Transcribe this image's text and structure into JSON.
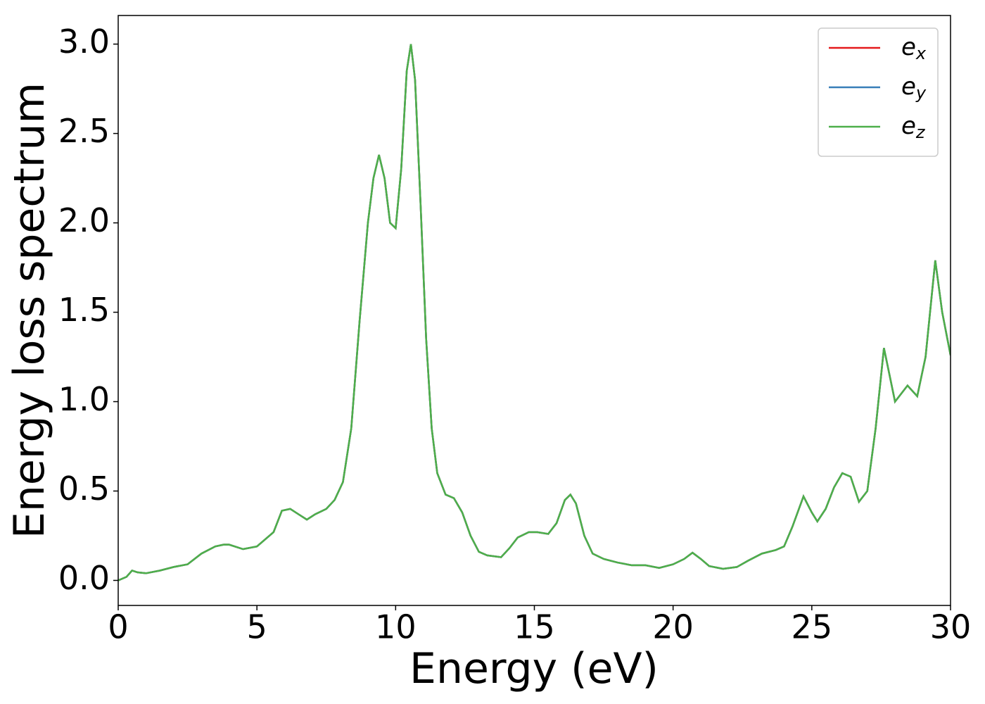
{
  "chart_data": {
    "type": "line",
    "xlabel": "Energy (eV)",
    "ylabel": "Energy loss spectrum",
    "x": [
      0,
      0.3,
      0.5,
      0.7,
      1.0,
      1.5,
      2.0,
      2.5,
      3.0,
      3.5,
      3.8,
      4.0,
      4.5,
      5.0,
      5.3,
      5.6,
      5.9,
      6.2,
      6.5,
      6.8,
      7.1,
      7.5,
      7.8,
      8.1,
      8.4,
      8.7,
      9.0,
      9.2,
      9.4,
      9.6,
      9.8,
      10.0,
      10.2,
      10.4,
      10.55,
      10.7,
      10.9,
      11.1,
      11.3,
      11.5,
      11.8,
      12.1,
      12.4,
      12.7,
      13.0,
      13.3,
      13.8,
      14.1,
      14.4,
      14.8,
      15.1,
      15.5,
      15.8,
      16.1,
      16.3,
      16.5,
      16.8,
      17.1,
      17.5,
      18.0,
      18.5,
      19.0,
      19.5,
      20.0,
      20.4,
      20.7,
      21.0,
      21.3,
      21.8,
      22.3,
      22.7,
      23.2,
      23.7,
      24.0,
      24.3,
      24.7,
      25.0,
      25.2,
      25.5,
      25.8,
      26.1,
      26.4,
      26.7,
      27.0,
      27.3,
      27.6,
      27.8,
      28.0,
      28.2,
      28.45,
      28.8,
      29.1,
      29.45,
      29.7,
      30.0
    ],
    "series": [
      {
        "name": "ex",
        "color": "#e41a1c",
        "values": [
          0,
          0.02,
          0.055,
          0.045,
          0.04,
          0.055,
          0.075,
          0.09,
          0.15,
          0.19,
          0.2,
          0.2,
          0.175,
          0.19,
          0.23,
          0.27,
          0.39,
          0.4,
          0.37,
          0.34,
          0.37,
          0.4,
          0.45,
          0.55,
          0.85,
          1.45,
          2.0,
          2.25,
          2.38,
          2.25,
          2.0,
          1.97,
          2.3,
          2.85,
          3.0,
          2.8,
          2.1,
          1.35,
          0.85,
          0.6,
          0.48,
          0.46,
          0.38,
          0.25,
          0.16,
          0.14,
          0.13,
          0.18,
          0.24,
          0.27,
          0.27,
          0.26,
          0.32,
          0.45,
          0.48,
          0.43,
          0.25,
          0.15,
          0.12,
          0.1,
          0.085,
          0.085,
          0.07,
          0.09,
          0.12,
          0.155,
          0.12,
          0.08,
          0.065,
          0.075,
          0.11,
          0.15,
          0.17,
          0.19,
          0.3,
          0.47,
          0.38,
          0.33,
          0.4,
          0.52,
          0.6,
          0.58,
          0.44,
          0.5,
          0.85,
          1.3,
          1.15,
          1.0,
          1.04,
          1.09,
          1.03,
          1.25,
          1.79,
          1.5,
          1.26
        ]
      },
      {
        "name": "ey",
        "color": "#377eb8",
        "values": [
          0,
          0.02,
          0.055,
          0.045,
          0.04,
          0.055,
          0.075,
          0.09,
          0.15,
          0.19,
          0.2,
          0.2,
          0.175,
          0.19,
          0.23,
          0.27,
          0.39,
          0.4,
          0.37,
          0.34,
          0.37,
          0.4,
          0.45,
          0.55,
          0.85,
          1.45,
          2.0,
          2.25,
          2.38,
          2.25,
          2.0,
          1.97,
          2.3,
          2.85,
          3.0,
          2.8,
          2.1,
          1.35,
          0.85,
          0.6,
          0.48,
          0.46,
          0.38,
          0.25,
          0.16,
          0.14,
          0.13,
          0.18,
          0.24,
          0.27,
          0.27,
          0.26,
          0.32,
          0.45,
          0.48,
          0.43,
          0.25,
          0.15,
          0.12,
          0.1,
          0.085,
          0.085,
          0.07,
          0.09,
          0.12,
          0.155,
          0.12,
          0.08,
          0.065,
          0.075,
          0.11,
          0.15,
          0.17,
          0.19,
          0.3,
          0.47,
          0.38,
          0.33,
          0.4,
          0.52,
          0.6,
          0.58,
          0.44,
          0.5,
          0.85,
          1.3,
          1.15,
          1.0,
          1.04,
          1.09,
          1.03,
          1.25,
          1.79,
          1.5,
          1.26
        ]
      },
      {
        "name": "ez",
        "color": "#4daf4a",
        "values": [
          0,
          0.02,
          0.055,
          0.045,
          0.04,
          0.055,
          0.075,
          0.09,
          0.15,
          0.19,
          0.2,
          0.2,
          0.175,
          0.19,
          0.23,
          0.27,
          0.39,
          0.4,
          0.37,
          0.34,
          0.37,
          0.4,
          0.45,
          0.55,
          0.85,
          1.45,
          2.0,
          2.25,
          2.38,
          2.25,
          2.0,
          1.97,
          2.3,
          2.85,
          3.0,
          2.8,
          2.1,
          1.35,
          0.85,
          0.6,
          0.48,
          0.46,
          0.38,
          0.25,
          0.16,
          0.14,
          0.13,
          0.18,
          0.24,
          0.27,
          0.27,
          0.26,
          0.32,
          0.45,
          0.48,
          0.43,
          0.25,
          0.15,
          0.12,
          0.1,
          0.085,
          0.085,
          0.07,
          0.09,
          0.12,
          0.155,
          0.12,
          0.08,
          0.065,
          0.075,
          0.11,
          0.15,
          0.17,
          0.19,
          0.3,
          0.47,
          0.38,
          0.33,
          0.4,
          0.52,
          0.6,
          0.58,
          0.44,
          0.5,
          0.85,
          1.3,
          1.15,
          1.0,
          1.04,
          1.09,
          1.03,
          1.25,
          1.79,
          1.5,
          1.26
        ]
      }
    ],
    "xlim": [
      0,
      30
    ],
    "xticks": [
      0,
      5,
      10,
      15,
      20,
      25,
      30
    ],
    "ylim": [
      -0.14,
      3.16
    ],
    "yticks": [
      {
        "value": 0,
        "label": "0.0"
      },
      0.5,
      {
        "value": 1,
        "label": "1.0"
      },
      1.5,
      {
        "value": 2,
        "label": "2.0"
      },
      2.5,
      {
        "value": 3,
        "label": "3.0"
      }
    ],
    "grid": false,
    "legend": "upper right"
  }
}
